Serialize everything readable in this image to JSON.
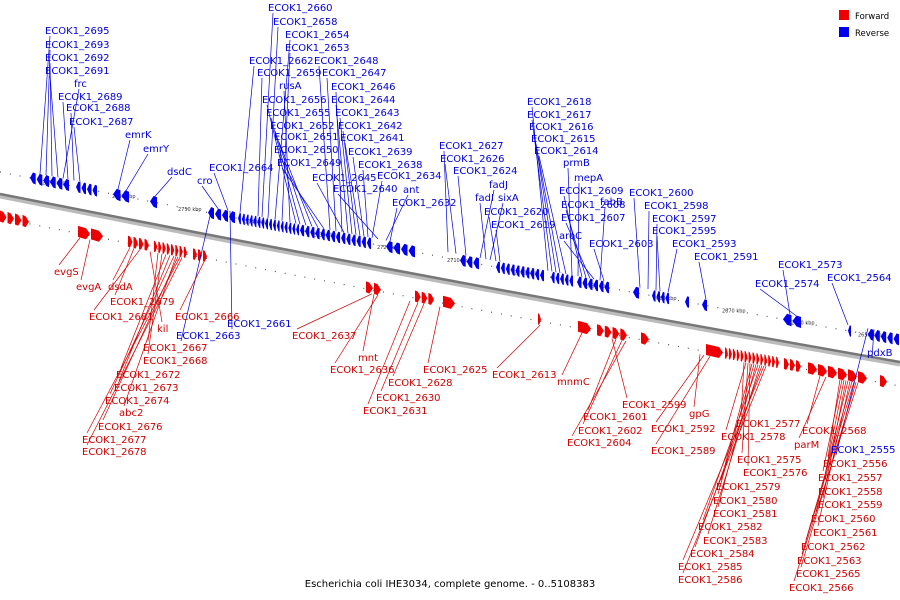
{
  "caption": "Escherichia coli IHE3034, complete genome. - 0..5108383",
  "legend": {
    "forward_label": "Forward",
    "reverse_label": "Reverse",
    "forward_color": "#ee0000",
    "reverse_color": "#0000ee"
  },
  "scale": {
    "ticks": [
      "2770 kbp",
      "2760 kbp",
      "2750 kbp",
      "2740 kbp",
      "2730 kbp",
      "2720 kbp",
      "2710 kbp",
      "2700 kbp",
      "2690 kbp",
      "2680 kbp",
      "2670 kbp",
      "2660 kbp",
      "2650 kbp"
    ]
  },
  "reverse_genes": [
    "ECOK1_2695",
    "ECOK1_2693",
    "ECOK1_2692",
    "ECOK1_2691",
    "frc",
    "ECOK1_2689",
    "ECOK1_2688",
    "ECOK1_2687",
    "emrK",
    "emrY",
    "dsdC",
    "cro",
    "ECOK1_2664",
    "ECOK1_2662",
    "ECOK1_2660",
    "ECOK1_2658",
    "ECOK1_2654",
    "ECOK1_2653",
    "ECOK1_2659",
    "rusA",
    "ECOK1_2656",
    "ECOK1_2655",
    "ECOK1_2652",
    "ECOK1_2651",
    "ECOK1_2650",
    "ECOK1_2649",
    "ECOK1_2648",
    "ECOK1_2647",
    "ECOK1_2646",
    "ECOK1_2644",
    "ECOK1_2643",
    "ECOK1_2642",
    "ECOK1_2641",
    "ECOK1_2639",
    "ECOK1_2638",
    "ECOK1_2645",
    "ECOK1_2634",
    "ECOK1_2640",
    "ant",
    "ECOK1_2632",
    "ECOK1_2627",
    "ECOK1_2626",
    "ECOK1_2624",
    "fadJ",
    "fadI",
    "sixA",
    "ECOK1_2620",
    "ECOK1_2619",
    "ECOK1_2618",
    "ECOK1_2617",
    "ECOK1_2616",
    "ECOK1_2615",
    "ECOK1_2614",
    "prmB",
    "mepA",
    "ECOK1_2609",
    "ECOK1_2608",
    "ECOK1_2607",
    "aroC",
    "fabB",
    "ECOK1_2603",
    "ECOK1_2600",
    "ECOK1_2598",
    "ECOK1_2597",
    "ECOK1_2595",
    "ECOK1_2593",
    "ECOK1_2591",
    "ECOK1_2573",
    "ECOK1_2574",
    "ECOK1_2564",
    "pdxB",
    "ECOK1_2555",
    "ECOK1_2661",
    "ECOK1_2663"
  ],
  "forward_genes": [
    "evgS",
    "evgA",
    "dsdA",
    "ECOK1_2679",
    "ECOK1_2681",
    "ECOK1_2666",
    "kil",
    "ECOK1_2667",
    "ECOK1_2668",
    "ECOK1_2672",
    "ECOK1_2673",
    "ECOK1_2674",
    "abc2",
    "ECOK1_2676",
    "ECOK1_2677",
    "ECOK1_2678",
    "ECOK1_2637",
    "mnt",
    "ECOK1_2636",
    "ECOK1_2625",
    "ECOK1_2628",
    "ECOK1_2630",
    "ECOK1_2631",
    "ECOK1_2613",
    "mnmC",
    "ECOK1_2599",
    "ECOK1_2601",
    "ECOK1_2602",
    "ECOK1_2604",
    "gpG",
    "ECOK1_2592",
    "ECOK1_2589",
    "ECOK1_2577",
    "ECOK1_2578",
    "ECOK1_2575",
    "ECOK1_2576",
    "ECOK1_2579",
    "ECOK1_2580",
    "ECOK1_2581",
    "ECOK1_2582",
    "ECOK1_2583",
    "ECOK1_2584",
    "ECOK1_2585",
    "ECOK1_2586",
    "ECOK1_2568",
    "parM",
    "ECOK1_2556",
    "ECOK1_2557",
    "ECOK1_2558",
    "ECOK1_2559",
    "ECOK1_2560",
    "ECOK1_2561",
    "ECOK1_2562",
    "ECOK1_2563",
    "ECOK1_2565",
    "ECOK1_2566"
  ]
}
